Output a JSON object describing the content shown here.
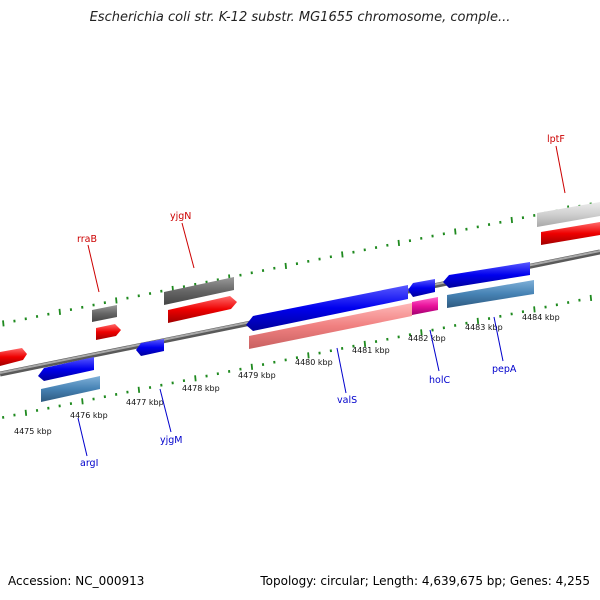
{
  "title": "Escherichia coli str. K-12 substr. MG1655 chromosome, comple...",
  "footer": {
    "accession": "Accession: NC_000913",
    "summary": "Topology: circular; Length: 4,639,675 bp; Genes: 4,255"
  },
  "colors": {
    "backbone": "#8a8a8a",
    "tick": "#1f8a1f",
    "forward_label": "#cc0000",
    "reverse_label": "#0000cc"
  },
  "ticks": [
    "4475 kbp",
    "4476 kbp",
    "4477 kbp",
    "4478 kbp",
    "4479 kbp",
    "4480 kbp",
    "4481 kbp",
    "4482 kbp",
    "4483 kbp",
    "4484 kbp"
  ],
  "genes": [
    {
      "name": "rraB",
      "strand": "forward",
      "color": "gray"
    },
    {
      "name": "yjgN",
      "strand": "forward",
      "color": "gray"
    },
    {
      "name": "lptF",
      "strand": "forward",
      "color": "lightgray"
    },
    {
      "name": "argI",
      "strand": "reverse",
      "color": "blue"
    },
    {
      "name": "yjgM",
      "strand": "reverse",
      "color": "blue"
    },
    {
      "name": "valS",
      "strand": "reverse",
      "color": "blue"
    },
    {
      "name": "holC",
      "strand": "reverse",
      "color": "blue"
    },
    {
      "name": "pepA",
      "strand": "reverse",
      "color": "blue"
    }
  ]
}
